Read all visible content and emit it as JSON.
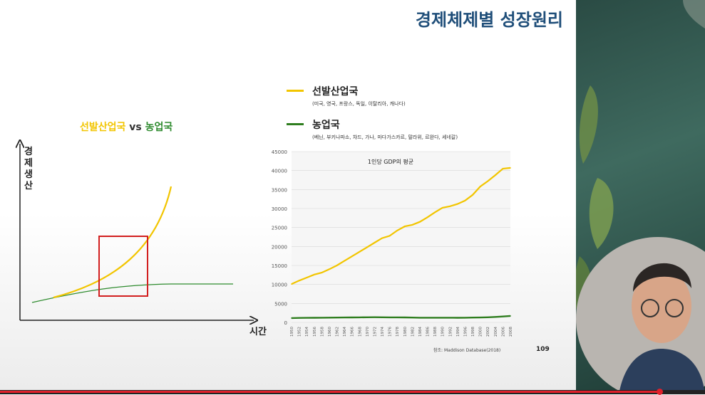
{
  "slide": {
    "title": "경제체제별 성장원리",
    "page_number": "109",
    "source": "참조: Maddison Database(2018)"
  },
  "left_chart": {
    "heading_developed": "선발산업국",
    "heading_vs": " vs ",
    "heading_agricultural": "농업국",
    "y_label": [
      "경",
      "제",
      "생",
      "산"
    ],
    "x_label": "시간",
    "colors": {
      "developed": "#f2c500",
      "agricultural": "#2e8b2e",
      "highlight": "#d21f1f"
    }
  },
  "legend": [
    {
      "name": "선발산업국",
      "sub": "(미국, 영국, 프랑스, 독일, 이탈리아, 캐나다)",
      "color": "#f2c500"
    },
    {
      "name": "농업국",
      "sub": "(베닌, 부키나파소, 챠드, 가나, 마다가스카르, 말라위, 르완다, 세네갈)",
      "color": "#2e7d1e"
    }
  ],
  "chart_data": {
    "type": "line",
    "title": "1인당 GDP의 평균",
    "xlabel": "",
    "ylabel": "",
    "ylim": [
      0,
      45000
    ],
    "yticks": [
      0,
      5000,
      10000,
      15000,
      20000,
      25000,
      30000,
      35000,
      40000,
      45000
    ],
    "x": [
      1950,
      1952,
      1954,
      1956,
      1958,
      1960,
      1962,
      1964,
      1966,
      1968,
      1970,
      1972,
      1974,
      1976,
      1978,
      1980,
      1982,
      1984,
      1986,
      1988,
      1990,
      1992,
      1994,
      1996,
      1998,
      2000,
      2002,
      2004,
      2006,
      2008
    ],
    "series": [
      {
        "name": "선발산업국",
        "color": "#f2c500",
        "values": [
          10100,
          11000,
          11800,
          12600,
          13100,
          14000,
          15000,
          16200,
          17400,
          18600,
          19800,
          21000,
          22200,
          22800,
          24200,
          25300,
          25700,
          26500,
          27700,
          29000,
          30200,
          30600,
          31200,
          32100,
          33600,
          35800,
          37200,
          38800,
          40500,
          40700
        ]
      },
      {
        "name": "농업국",
        "color": "#2e7d1e",
        "values": [
          1150,
          1180,
          1200,
          1220,
          1230,
          1260,
          1280,
          1300,
          1310,
          1330,
          1350,
          1360,
          1350,
          1340,
          1330,
          1320,
          1280,
          1240,
          1230,
          1230,
          1240,
          1230,
          1220,
          1240,
          1270,
          1300,
          1350,
          1450,
          1550,
          1700
        ]
      }
    ]
  },
  "video": {
    "progress": 0.935
  }
}
